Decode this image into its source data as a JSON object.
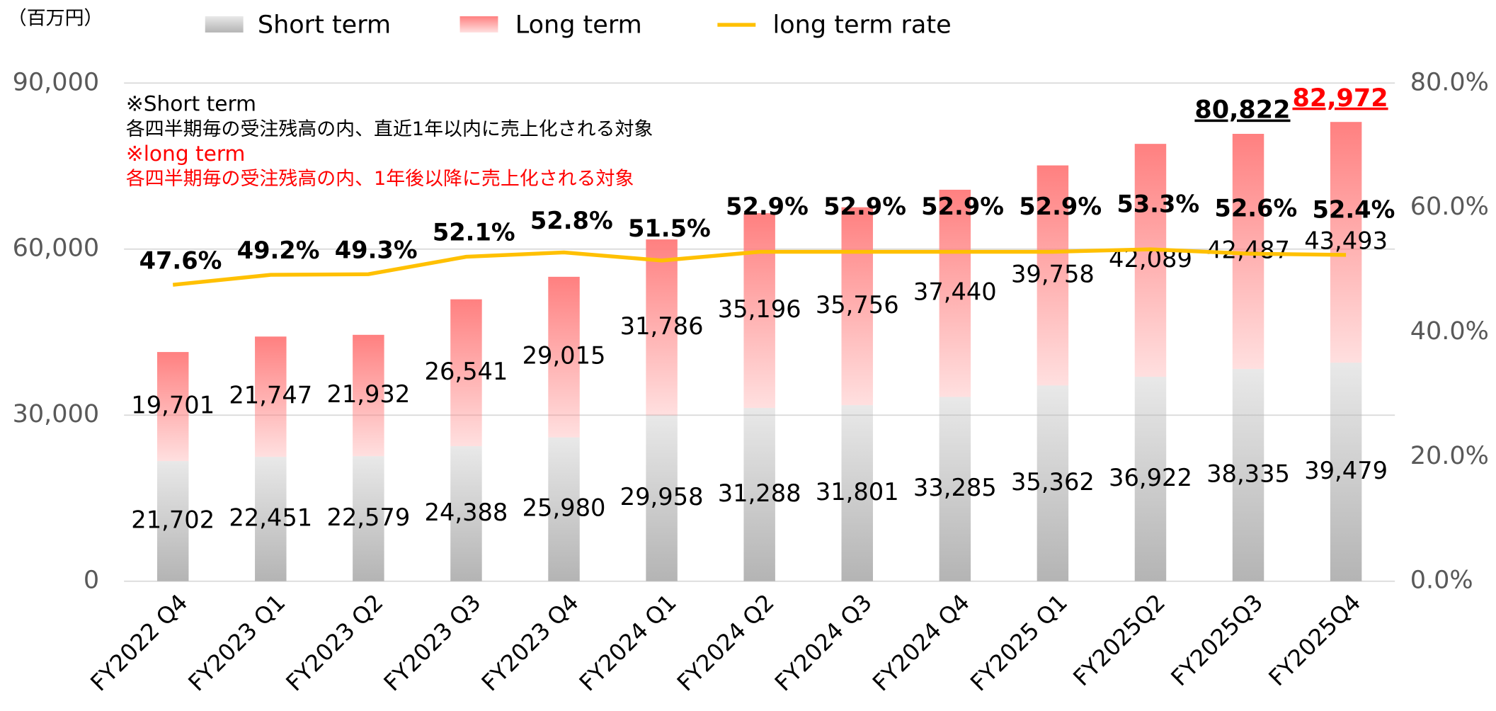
{
  "chart_data": {
    "type": "bar_line",
    "unit_label": "（百万円）",
    "categories": [
      "FY2022 Q4",
      "FY2023 Q1",
      "FY2023 Q2",
      "FY2023 Q3",
      "FY2023 Q4",
      "FY2024 Q1",
      "FY2024 Q2",
      "FY2024 Q3",
      "FY2024 Q4",
      "FY2025 Q1",
      "FY2025Q2",
      "FY2025Q3",
      "FY2025Q4"
    ],
    "series": [
      {
        "name": "Short term",
        "color": "#b4b4b4",
        "values": [
          21702,
          22451,
          22579,
          24388,
          25980,
          29958,
          31288,
          31801,
          33285,
          35362,
          36922,
          38335,
          39479
        ],
        "value_labels": [
          "21,702",
          "22,451",
          "22,579",
          "24,388",
          "25,980",
          "29,958",
          "31,288",
          "31,801",
          "33,285",
          "35,362",
          "36,922",
          "38,335",
          "39,479"
        ]
      },
      {
        "name": "Long term",
        "color": "#ff8080",
        "values": [
          19701,
          21747,
          21932,
          26541,
          29015,
          31786,
          35196,
          35756,
          37440,
          39758,
          42089,
          42487,
          43493
        ],
        "value_labels": [
          "19,701",
          "21,747",
          "21,932",
          "26,541",
          "29,015",
          "31,786",
          "35,196",
          "35,756",
          "37,440",
          "39,758",
          "42,089",
          "42,487",
          "43,493"
        ]
      },
      {
        "name": "long term rate",
        "color": "#ffc000",
        "axis": "y2",
        "values": [
          47.6,
          49.2,
          49.3,
          52.1,
          52.8,
          51.5,
          52.9,
          52.9,
          52.9,
          52.9,
          53.3,
          52.6,
          52.4
        ],
        "value_labels": [
          "47.6%",
          "49.2%",
          "49.3%",
          "52.1%",
          "52.8%",
          "51.5%",
          "52.9%",
          "52.9%",
          "52.9%",
          "52.9%",
          "53.3%",
          "52.6%",
          "52.4%"
        ]
      }
    ],
    "total_labels": [
      null,
      null,
      null,
      null,
      null,
      null,
      null,
      null,
      null,
      null,
      null,
      "80,822",
      "82,972"
    ],
    "total_label_colors": [
      null,
      null,
      null,
      null,
      null,
      null,
      null,
      null,
      null,
      null,
      null,
      "#000000",
      "#ff0000"
    ],
    "ylim": [
      0,
      90000
    ],
    "yticks": [
      0,
      {
        "value": 30000,
        "label": "30,000"
      },
      {
        "value": 60000,
        "label": "60,000"
      },
      {
        "value": 90000,
        "label": "90,000"
      }
    ],
    "y2lim": [
      0,
      80
    ],
    "y2ticks": [
      {
        "value": 0,
        "label": "0.0%"
      },
      {
        "value": 20,
        "label": "20.0%"
      },
      {
        "value": 40,
        "label": "40.0%"
      },
      {
        "value": 60,
        "label": "60.0%"
      },
      {
        "value": 80,
        "label": "80.0%"
      }
    ],
    "grid": true,
    "notes": [
      {
        "text": "※Short term",
        "color": "#000000"
      },
      {
        "text": "各四半期毎の受注残高の内、直近1年以内に売上化される対象",
        "color": "#000000"
      },
      {
        "text": "※long term",
        "color": "#ff0000"
      },
      {
        "text": "各四半期毎の受注残高の内、1年後以降に売上化される対象",
        "color": "#ff0000"
      }
    ]
  }
}
